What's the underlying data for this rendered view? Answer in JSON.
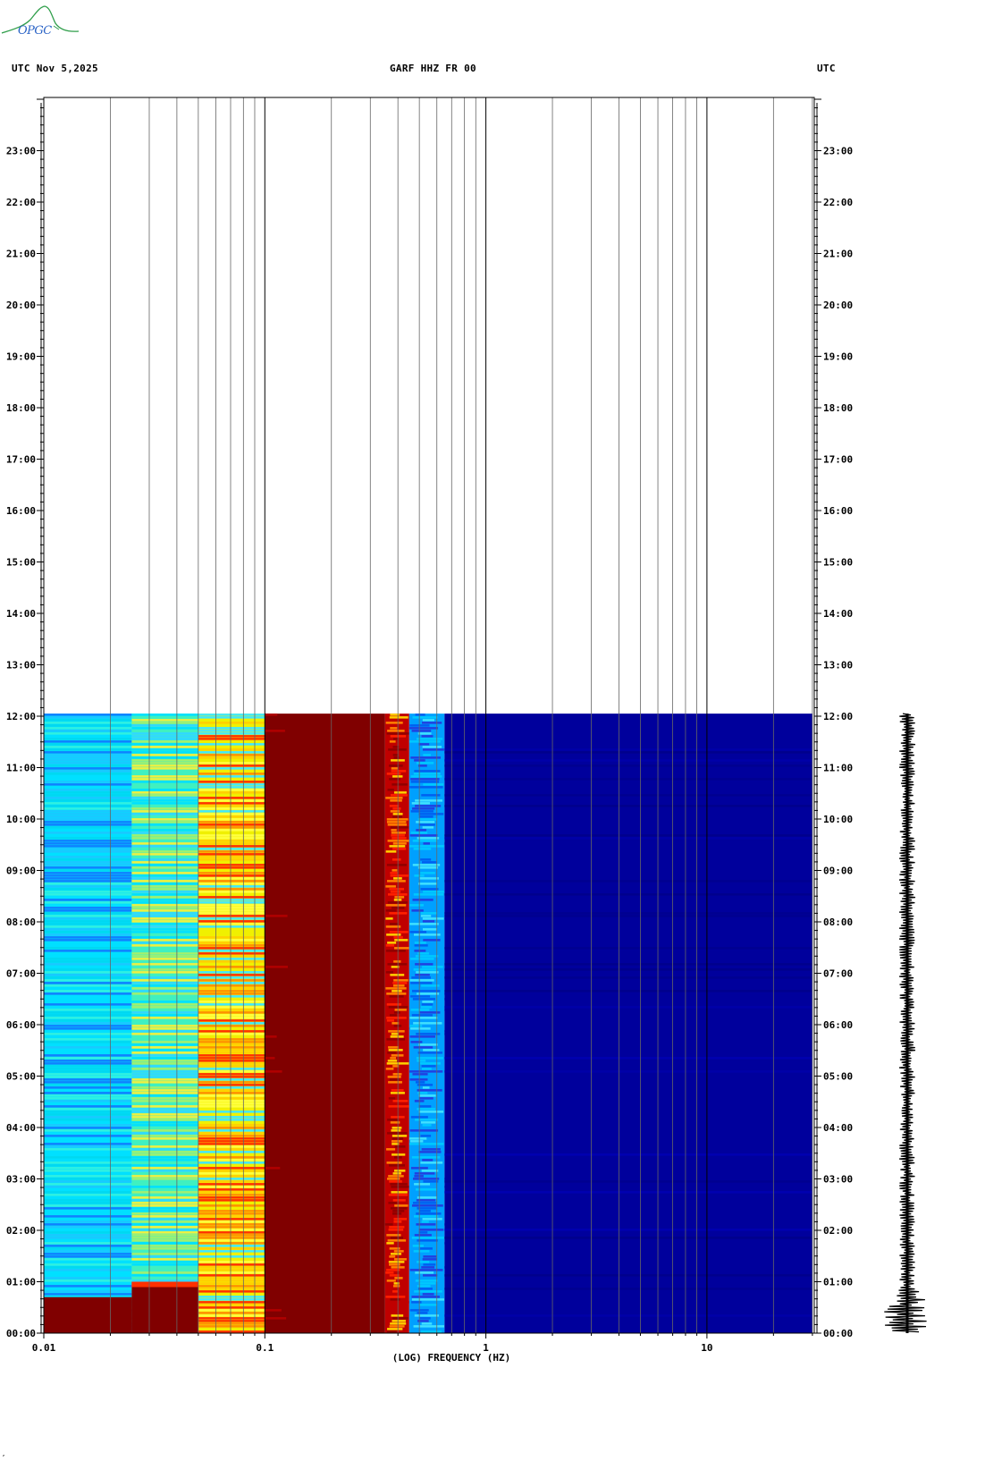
{
  "header": {
    "logo_text": "OPGC",
    "left": "UTC  Nov 5,2025",
    "center": "GARF HHZ FR 00",
    "right": "UTC"
  },
  "footer": {
    "mark": "‚"
  },
  "colors": {
    "background": "#ffffff",
    "logo_green": "#2f9e4a",
    "logo_blue": "#2a63c6",
    "spectrum_low": "#000090",
    "spectrum_high": "#800000"
  },
  "chart_data": {
    "type": "heatmap",
    "title": "GARF HHZ FR 00",
    "xlabel": "(LOG) FREQUENCY (HZ)",
    "x_scale": "log",
    "xlim": [
      0.01,
      30
    ],
    "x_ticks": [
      {
        "value": 0.01,
        "label": "0.01"
      },
      {
        "value": 0.1,
        "label": "0.1"
      },
      {
        "value": 1,
        "label": "1"
      },
      {
        "value": 10,
        "label": "10"
      }
    ],
    "y_time_range_hours": [
      0,
      24
    ],
    "y_ticks": [
      "00:00",
      "01:00",
      "02:00",
      "03:00",
      "04:00",
      "05:00",
      "06:00",
      "07:00",
      "08:00",
      "09:00",
      "10:00",
      "11:00",
      "12:00",
      "13:00",
      "14:00",
      "15:00",
      "16:00",
      "17:00",
      "18:00",
      "19:00",
      "20:00",
      "21:00",
      "22:00",
      "23:00"
    ],
    "data_end_hour": 12.05,
    "spectral_bands": [
      {
        "f_min": 0.01,
        "f_max": 0.025,
        "level": "cyan"
      },
      {
        "f_min": 0.025,
        "f_max": 0.05,
        "level": "cyan-yellow"
      },
      {
        "f_min": 0.05,
        "f_max": 0.1,
        "level": "yellow-orange"
      },
      {
        "f_min": 0.1,
        "f_max": 0.35,
        "level": "dark-red"
      },
      {
        "f_min": 0.35,
        "f_max": 0.45,
        "level": "red-yellow"
      },
      {
        "f_min": 0.45,
        "f_max": 0.65,
        "level": "cyan-blue"
      },
      {
        "f_min": 0.65,
        "f_max": 30,
        "level": "dark-blue"
      }
    ],
    "low_band_event_hours": [
      0,
      0.7
    ],
    "seismogram_event_hour": 0.35,
    "grid": true
  }
}
